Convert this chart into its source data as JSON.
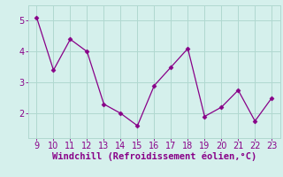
{
  "x": [
    9,
    10,
    11,
    12,
    13,
    14,
    15,
    16,
    17,
    18,
    19,
    20,
    21,
    22,
    23
  ],
  "y": [
    5.1,
    3.4,
    4.4,
    4.0,
    2.3,
    2.0,
    1.6,
    2.9,
    3.5,
    4.1,
    1.9,
    2.2,
    2.75,
    1.75,
    2.5
  ],
  "line_color": "#880088",
  "marker": "D",
  "marker_size": 2.5,
  "background_color": "#d5f0ec",
  "grid_color": "#b0d8d0",
  "xlabel": "Windchill (Refroidissement éolien,°C)",
  "xlabel_color": "#880088",
  "xlabel_fontsize": 7.5,
  "tick_color": "#880088",
  "tick_fontsize": 7,
  "xlim": [
    8.5,
    23.5
  ],
  "ylim": [
    1.2,
    5.5
  ],
  "yticks": [
    2,
    3,
    4,
    5
  ],
  "xticks": [
    9,
    10,
    11,
    12,
    13,
    14,
    15,
    16,
    17,
    18,
    19,
    20,
    21,
    22,
    23
  ]
}
